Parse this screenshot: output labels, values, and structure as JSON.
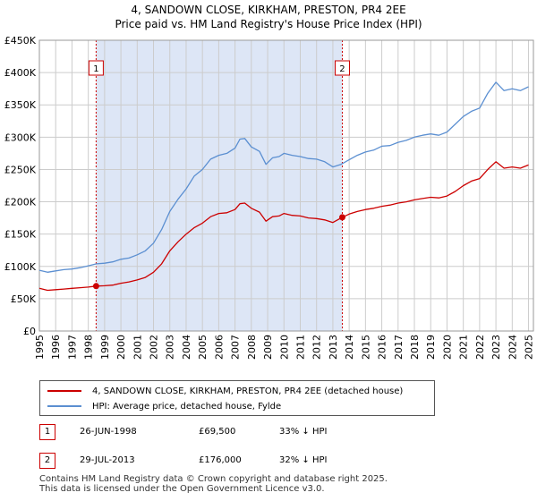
{
  "title_line1": "4, SANDOWN CLOSE, KIRKHAM, PRESTON, PR4 2EE",
  "title_line2": "Price paid vs. HM Land Registry's House Price Index (HPI)",
  "colors": {
    "property": "#cc0000",
    "hpi": "#5b8fd1",
    "shade": "#dde6f6",
    "grid": "#cccccc",
    "marker_border": "#cc0000"
  },
  "legend": {
    "property_label": "4, SANDOWN CLOSE, KIRKHAM, PRESTON, PR4 2EE (detached house)",
    "hpi_label": "HPI: Average price, detached house, Fylde"
  },
  "sales": [
    {
      "num": "1",
      "date": "26-JUN-1998",
      "price": "£69,500",
      "hpi_diff": "33% ↓ HPI"
    },
    {
      "num": "2",
      "date": "29-JUL-2013",
      "price": "£176,000",
      "hpi_diff": "32% ↓ HPI"
    }
  ],
  "footer_line1": "Contains HM Land Registry data © Crown copyright and database right 2025.",
  "footer_line2": "This data is licensed under the Open Government Licence v3.0.",
  "chart_data": {
    "type": "line",
    "title": "4, SANDOWN CLOSE, KIRKHAM, PRESTON, PR4 2EE — Price paid vs. HM Land Registry's House Price Index (HPI)",
    "xlabel": "",
    "ylabel": "",
    "xlim": [
      1995,
      2025.3
    ],
    "ylim": [
      0,
      450000
    ],
    "x_ticks": [
      1995,
      1996,
      1997,
      1998,
      1999,
      2000,
      2001,
      2002,
      2003,
      2004,
      2005,
      2006,
      2007,
      2008,
      2009,
      2010,
      2011,
      2012,
      2013,
      2014,
      2015,
      2016,
      2017,
      2018,
      2019,
      2020,
      2021,
      2022,
      2023,
      2024,
      2025
    ],
    "x_tick_labels": [
      "1995",
      "1996",
      "1997",
      "1998",
      "1999",
      "2000",
      "2001",
      "2002",
      "2003",
      "2004",
      "2005",
      "2006",
      "2007",
      "2008",
      "2009",
      "2010",
      "2011",
      "2012",
      "2013",
      "2014",
      "2015",
      "2016",
      "2017",
      "2018",
      "2019",
      "2020",
      "2021",
      "2022",
      "2023",
      "2024",
      "2025"
    ],
    "y_ticks": [
      0,
      50000,
      100000,
      150000,
      200000,
      250000,
      300000,
      350000,
      400000,
      450000
    ],
    "y_tick_labels": [
      "£0",
      "£50K",
      "£100K",
      "£150K",
      "£200K",
      "£250K",
      "£300K",
      "£350K",
      "£400K",
      "£450K"
    ],
    "grid": true,
    "shaded_region": [
      1998.48,
      2013.58
    ],
    "series": [
      {
        "name": "HPI: Average price, detached house, Fylde",
        "color": "#5b8fd1",
        "x": [
          1995,
          1995.5,
          1996,
          1996.5,
          1997,
          1997.5,
          1998,
          1998.5,
          1999,
          1999.5,
          2000,
          2000.5,
          2001,
          2001.5,
          2002,
          2002.5,
          2003,
          2003.5,
          2004,
          2004.5,
          2005,
          2005.5,
          2006,
          2006.5,
          2007,
          2007.3,
          2007.6,
          2008,
          2008.5,
          2008.9,
          2009.3,
          2009.7,
          2010,
          2010.5,
          2011,
          2011.5,
          2012,
          2012.5,
          2013,
          2013.5,
          2014,
          2014.5,
          2015,
          2015.5,
          2016,
          2016.5,
          2017,
          2017.5,
          2018,
          2018.5,
          2019,
          2019.5,
          2020,
          2020.5,
          2021,
          2021.5,
          2022,
          2022.5,
          2023,
          2023.5,
          2024,
          2024.5,
          2025
        ],
        "values": [
          94000,
          91000,
          93000,
          95000,
          96000,
          98000,
          101000,
          104000,
          105000,
          107000,
          111000,
          113000,
          118000,
          124000,
          136000,
          157000,
          185000,
          204000,
          220000,
          240000,
          250000,
          266000,
          272000,
          275000,
          283000,
          297000,
          298000,
          285000,
          278000,
          258000,
          268000,
          270000,
          275000,
          272000,
          270000,
          267000,
          266000,
          262000,
          254000,
          258000,
          265000,
          272000,
          277000,
          280000,
          286000,
          287000,
          292000,
          295000,
          300000,
          303000,
          305000,
          303000,
          308000,
          320000,
          332000,
          340000,
          345000,
          368000,
          385000,
          372000,
          375000,
          372000,
          378000
        ]
      },
      {
        "name": "4, SANDOWN CLOSE, KIRKHAM, PRESTON, PR4 2EE (detached house)",
        "color": "#cc0000",
        "x": [
          1995,
          1995.5,
          1996,
          1996.5,
          1997,
          1997.5,
          1998,
          1998.48,
          1999,
          1999.5,
          2000,
          2000.5,
          2001,
          2001.5,
          2002,
          2002.5,
          2003,
          2003.5,
          2004,
          2004.5,
          2005,
          2005.5,
          2006,
          2006.5,
          2007,
          2007.3,
          2007.6,
          2008,
          2008.5,
          2008.9,
          2009.3,
          2009.7,
          2010,
          2010.5,
          2011,
          2011.5,
          2012,
          2012.5,
          2013,
          2013.58,
          2014,
          2014.5,
          2015,
          2015.5,
          2016,
          2016.5,
          2017,
          2017.5,
          2018,
          2018.5,
          2019,
          2019.5,
          2020,
          2020.5,
          2021,
          2021.5,
          2022,
          2022.5,
          2023,
          2023.5,
          2024,
          2024.5,
          2025
        ],
        "values": [
          66000,
          63000,
          64000,
          65000,
          66000,
          67000,
          68000,
          69500,
          70000,
          71000,
          74000,
          76000,
          79000,
          83000,
          91000,
          104000,
          124000,
          138000,
          150000,
          160000,
          167000,
          177000,
          182000,
          183000,
          188000,
          197000,
          198000,
          190000,
          184000,
          170000,
          177000,
          178000,
          182000,
          179000,
          178000,
          175000,
          174000,
          172000,
          168000,
          176000,
          181000,
          185000,
          188000,
          190000,
          193000,
          195000,
          198000,
          200000,
          203000,
          205000,
          207000,
          206000,
          209000,
          216000,
          225000,
          232000,
          236000,
          250000,
          262000,
          252000,
          254000,
          252000,
          257000
        ]
      }
    ],
    "sale_points": [
      {
        "label": "1",
        "x": 1998.48,
        "value": 69500
      },
      {
        "label": "2",
        "x": 2013.58,
        "value": 176000
      }
    ]
  }
}
